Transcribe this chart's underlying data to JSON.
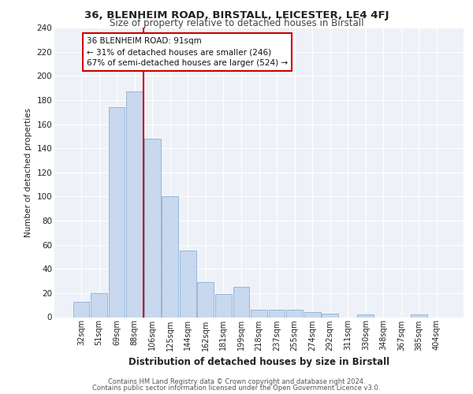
{
  "title": "36, BLENHEIM ROAD, BIRSTALL, LEICESTER, LE4 4FJ",
  "subtitle": "Size of property relative to detached houses in Birstall",
  "xlabel": "Distribution of detached houses by size in Birstall",
  "ylabel": "Number of detached properties",
  "bar_labels": [
    "32sqm",
    "51sqm",
    "69sqm",
    "88sqm",
    "106sqm",
    "125sqm",
    "144sqm",
    "162sqm",
    "181sqm",
    "199sqm",
    "218sqm",
    "237sqm",
    "255sqm",
    "274sqm",
    "292sqm",
    "311sqm",
    "330sqm",
    "348sqm",
    "367sqm",
    "385sqm",
    "404sqm"
  ],
  "bar_values": [
    13,
    20,
    174,
    187,
    148,
    100,
    55,
    29,
    19,
    25,
    6,
    6,
    6,
    4,
    3,
    0,
    2,
    0,
    0,
    2,
    0
  ],
  "bar_color": "#c8d8ee",
  "bar_edgecolor": "#8ab0d4",
  "vline_x": 3.5,
  "vline_color": "#cc0000",
  "annotation_title": "36 BLENHEIM ROAD: 91sqm",
  "annotation_line1": "← 31% of detached houses are smaller (246)",
  "annotation_line2": "67% of semi-detached houses are larger (524) →",
  "annotation_box_color": "#ffffff",
  "annotation_box_edgecolor": "#cc0000",
  "footer_line1": "Contains HM Land Registry data © Crown copyright and database right 2024.",
  "footer_line2": "Contains public sector information licensed under the Open Government Licence v3.0.",
  "background_color": "#eef2f8",
  "ylim": [
    0,
    240
  ],
  "yticks": [
    0,
    20,
    40,
    60,
    80,
    100,
    120,
    140,
    160,
    180,
    200,
    220,
    240
  ]
}
